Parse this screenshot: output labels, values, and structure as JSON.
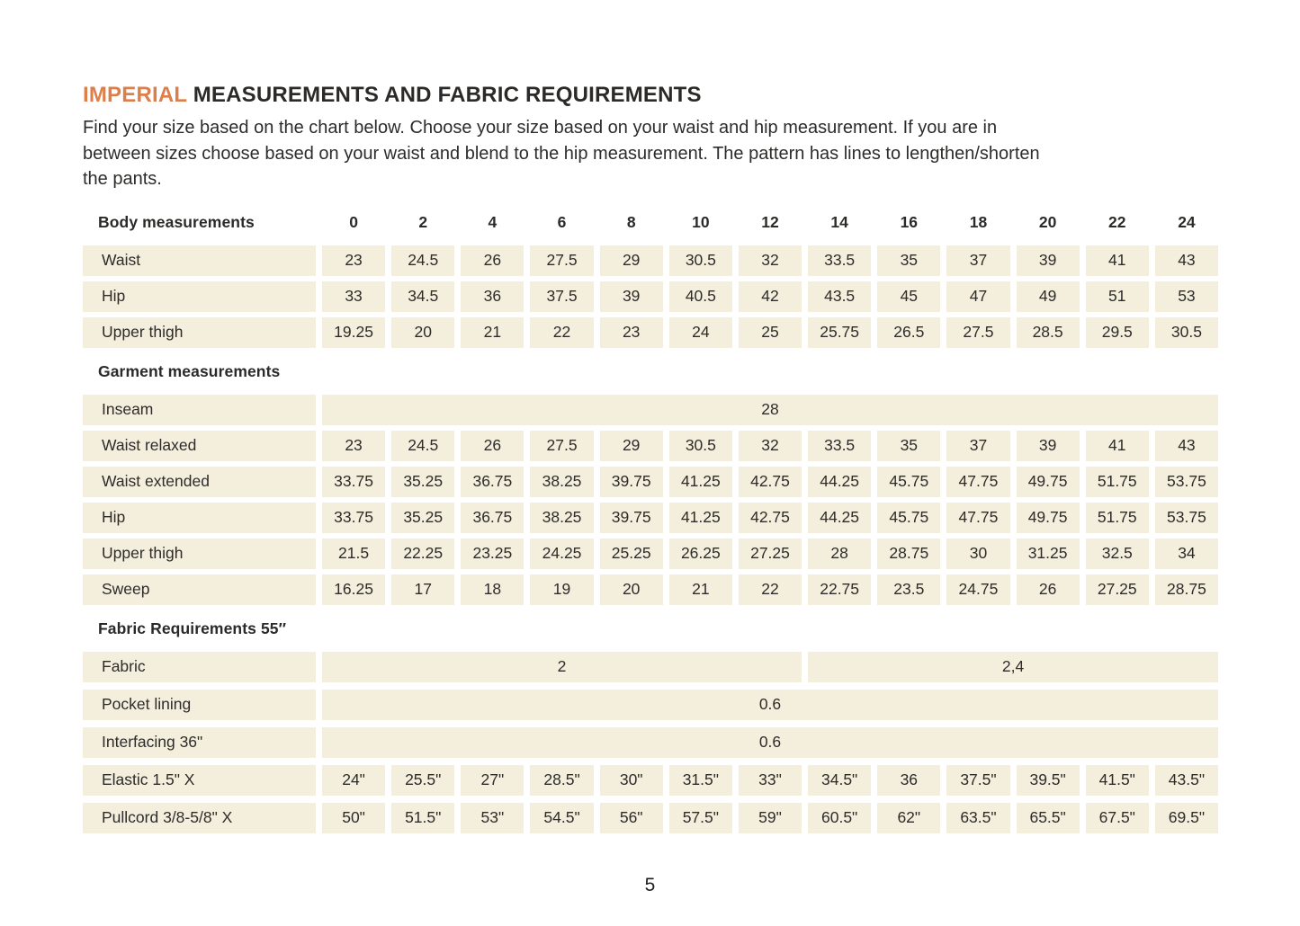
{
  "colors": {
    "accent": "#dd7f4b",
    "cell_background": "#f4eedd",
    "text": "#2d2c2a"
  },
  "header": {
    "title_highlight": "IMPERIAL",
    "title_rest": " MEASUREMENTS AND FABRIC REQUIREMENTS",
    "intro_lines": [
      "Find your size based on the chart below. Choose your size based on your waist and hip measurement. If you are in",
      "between sizes choose based on your waist and blend to the hip measurement. The pattern has lines to lengthen/shorten",
      "the pants."
    ]
  },
  "table": {
    "sizes": [
      "0",
      "2",
      "4",
      "6",
      "8",
      "10",
      "12",
      "14",
      "16",
      "18",
      "20",
      "22",
      "24"
    ],
    "sections": [
      {
        "id": "body-measurements",
        "header": "Body measurements",
        "show_sizes": true,
        "rows": [
          {
            "label": "Waist",
            "values": [
              "23",
              "24.5",
              "26",
              "27.5",
              "29",
              "30.5",
              "32",
              "33.5",
              "35",
              "37",
              "39",
              "41",
              "43"
            ]
          },
          {
            "label": "Hip",
            "values": [
              "33",
              "34.5",
              "36",
              "37.5",
              "39",
              "40.5",
              "42",
              "43.5",
              "45",
              "47",
              "49",
              "51",
              "53"
            ]
          },
          {
            "label": "Upper thigh",
            "values": [
              "19.25",
              "20",
              "21",
              "22",
              "23",
              "24",
              "25",
              "25.75",
              "26.5",
              "27.5",
              "28.5",
              "29.5",
              "30.5"
            ]
          }
        ]
      },
      {
        "id": "garment-measurements",
        "header": "Garment measurements",
        "show_sizes": false,
        "rows": [
          {
            "label": "Inseam",
            "spans": [
              {
                "value": "28",
                "cols": 13
              }
            ]
          },
          {
            "label": "Waist relaxed",
            "values": [
              "23",
              "24.5",
              "26",
              "27.5",
              "29",
              "30.5",
              "32",
              "33.5",
              "35",
              "37",
              "39",
              "41",
              "43"
            ]
          },
          {
            "label": "Waist extended",
            "values": [
              "33.75",
              "35.25",
              "36.75",
              "38.25",
              "39.75",
              "41.25",
              "42.75",
              "44.25",
              "45.75",
              "47.75",
              "49.75",
              "51.75",
              "53.75"
            ]
          },
          {
            "label": "Hip",
            "values": [
              "33.75",
              "35.25",
              "36.75",
              "38.25",
              "39.75",
              "41.25",
              "42.75",
              "44.25",
              "45.75",
              "47.75",
              "49.75",
              "51.75",
              "53.75"
            ]
          },
          {
            "label": "Upper thigh",
            "values": [
              "21.5",
              "22.25",
              "23.25",
              "24.25",
              "25.25",
              "26.25",
              "27.25",
              "28",
              "28.75",
              "30",
              "31.25",
              "32.5",
              "34"
            ]
          },
          {
            "label": "Sweep",
            "values": [
              "16.25",
              "17",
              "18",
              "19",
              "20",
              "21",
              "22",
              "22.75",
              "23.5",
              "24.75",
              "26",
              "27.25",
              "28.75"
            ]
          }
        ]
      },
      {
        "id": "fabric-requirements",
        "header": "Fabric Requirements 55″",
        "show_sizes": false,
        "rows": [
          {
            "label": "Fabric",
            "spans": [
              {
                "value": "2",
                "cols": 7
              },
              {
                "value": "2,4",
                "cols": 6
              }
            ]
          },
          {
            "label": "Pocket lining",
            "spans": [
              {
                "value": "0.6",
                "cols": 13
              }
            ]
          },
          {
            "label": "Interfacing 36\"",
            "spans": [
              {
                "value": "0.6",
                "cols": 13
              }
            ]
          },
          {
            "label": "Elastic  1.5\" X",
            "values": [
              "24\"",
              "25.5\"",
              "27\"",
              "28.5\"",
              "30\"",
              "31.5\"",
              "33\"",
              "34.5\"",
              "36",
              "37.5\"",
              "39.5\"",
              "41.5\"",
              "43.5\""
            ]
          },
          {
            "label": "Pullcord 3/8-5/8\" X",
            "values": [
              "50\"",
              "51.5\"",
              "53\"",
              "54.5\"",
              "56\"",
              "57.5\"",
              "59\"",
              "60.5\"",
              "62\"",
              "63.5\"",
              "65.5\"",
              "67.5\"",
              "69.5\""
            ]
          }
        ]
      }
    ]
  },
  "footer": {
    "page_number": "5"
  }
}
